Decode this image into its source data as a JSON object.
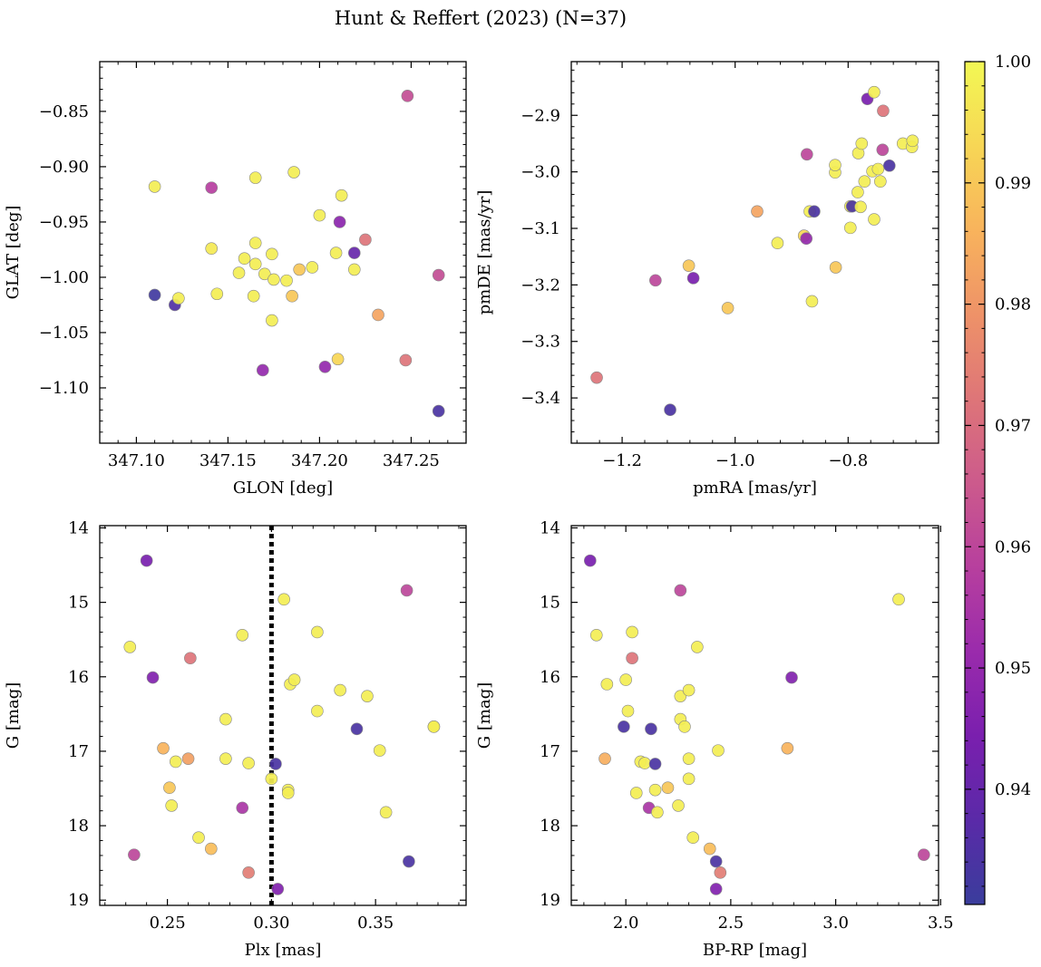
{
  "figure": {
    "title": "Hunt & Reffert (2023) (N=37)"
  },
  "colorbar": {
    "min": 0.9305,
    "max": 1.0,
    "ticks": [
      0.94,
      0.95,
      0.96,
      0.97,
      0.98,
      0.99,
      1.0
    ],
    "tick_labels": [
      "0.94",
      "0.95",
      "0.96",
      "0.97",
      "0.98",
      "0.99",
      "1.00"
    ],
    "colormap": "plasma"
  },
  "chart_data": [
    {
      "type": "scatter",
      "panel": "top-left",
      "xlabel": "GLON [deg]",
      "ylabel": "GLAT [deg]",
      "xlim": [
        347.08,
        347.28
      ],
      "ylim": [
        -1.15,
        -0.805
      ],
      "x_ticks": [
        347.1,
        347.15,
        347.2,
        347.25
      ],
      "x_tick_labels": [
        "347.10",
        "347.15",
        "347.20",
        "347.25"
      ],
      "y_ticks": [
        -0.85,
        -0.9,
        -0.95,
        -1.0,
        -1.05,
        -1.1
      ],
      "y_tick_labels": [
        "−0.85",
        "−0.90",
        "−0.95",
        "−1.00",
        "−1.05",
        "−1.10"
      ],
      "points": [
        {
          "x": 347.11,
          "y": -1.016,
          "c": 0.932
        },
        {
          "x": 347.121,
          "y": -1.025,
          "c": 0.935
        },
        {
          "x": 347.11,
          "y": -0.918,
          "c": 0.998
        },
        {
          "x": 347.123,
          "y": -1.019,
          "c": 0.998
        },
        {
          "x": 347.141,
          "y": -0.919,
          "c": 0.958
        },
        {
          "x": 347.141,
          "y": -0.974,
          "c": 0.997
        },
        {
          "x": 347.144,
          "y": -1.015,
          "c": 0.998
        },
        {
          "x": 347.156,
          "y": -0.996,
          "c": 0.998
        },
        {
          "x": 347.159,
          "y": -0.983,
          "c": 0.998
        },
        {
          "x": 347.164,
          "y": -1.017,
          "c": 0.998
        },
        {
          "x": 347.165,
          "y": -0.988,
          "c": 0.998
        },
        {
          "x": 347.165,
          "y": -0.91,
          "c": 0.998
        },
        {
          "x": 347.165,
          "y": -0.969,
          "c": 0.998
        },
        {
          "x": 347.169,
          "y": -1.084,
          "c": 0.95
        },
        {
          "x": 347.17,
          "y": -0.997,
          "c": 0.998
        },
        {
          "x": 347.174,
          "y": -1.039,
          "c": 0.998
        },
        {
          "x": 347.174,
          "y": -0.979,
          "c": 0.998
        },
        {
          "x": 347.175,
          "y": -1.002,
          "c": 0.998
        },
        {
          "x": 347.182,
          "y": -1.003,
          "c": 0.998
        },
        {
          "x": 347.185,
          "y": -1.017,
          "c": 0.99
        },
        {
          "x": 347.186,
          "y": -0.905,
          "c": 0.998
        },
        {
          "x": 347.189,
          "y": -0.993,
          "c": 0.99
        },
        {
          "x": 347.196,
          "y": -0.991,
          "c": 0.998
        },
        {
          "x": 347.2,
          "y": -0.944,
          "c": 0.998
        },
        {
          "x": 347.203,
          "y": -1.081,
          "c": 0.95
        },
        {
          "x": 347.209,
          "y": -0.978,
          "c": 0.998
        },
        {
          "x": 347.21,
          "y": -1.074,
          "c": 0.993
        },
        {
          "x": 347.211,
          "y": -0.95,
          "c": 0.948
        },
        {
          "x": 347.212,
          "y": -0.926,
          "c": 0.998
        },
        {
          "x": 347.219,
          "y": -0.978,
          "c": 0.94
        },
        {
          "x": 347.219,
          "y": -0.993,
          "c": 0.998
        },
        {
          "x": 347.225,
          "y": -0.966,
          "c": 0.972
        },
        {
          "x": 347.232,
          "y": -1.034,
          "c": 0.983
        },
        {
          "x": 347.247,
          "y": -1.075,
          "c": 0.972
        },
        {
          "x": 347.248,
          "y": -0.836,
          "c": 0.962
        },
        {
          "x": 347.265,
          "y": -0.998,
          "c": 0.962
        },
        {
          "x": 347.265,
          "y": -1.121,
          "c": 0.934
        }
      ]
    },
    {
      "type": "scatter",
      "panel": "top-right",
      "xlabel": "pmRA [mas/yr]",
      "ylabel": "pmDE [mas/yr]",
      "xlim": [
        -1.29,
        -0.64
      ],
      "ylim": [
        -3.48,
        -2.805
      ],
      "x_ticks": [
        -1.2,
        -1.0,
        -0.8
      ],
      "x_tick_labels": [
        "−1.2",
        "−1.0",
        "−0.8"
      ],
      "y_ticks": [
        -2.9,
        -3.0,
        -3.1,
        -3.2,
        -3.3,
        -3.4
      ],
      "y_tick_labels": [
        "−2.9",
        "−3.0",
        "−3.1",
        "−3.2",
        "−3.3",
        "−3.4"
      ],
      "points": [
        {
          "x": -1.245,
          "y": -3.364,
          "c": 0.972
        },
        {
          "x": -1.115,
          "y": -3.421,
          "c": 0.934
        },
        {
          "x": -1.141,
          "y": -3.192,
          "c": 0.96
        },
        {
          "x": -1.074,
          "y": -3.188,
          "c": 0.944
        },
        {
          "x": -1.082,
          "y": -3.166,
          "c": 0.99
        },
        {
          "x": -1.013,
          "y": -3.241,
          "c": 0.99
        },
        {
          "x": -0.961,
          "y": -3.07,
          "c": 0.983
        },
        {
          "x": -0.925,
          "y": -3.126,
          "c": 0.998
        },
        {
          "x": -0.878,
          "y": -3.113,
          "c": 0.993
        },
        {
          "x": -0.874,
          "y": -3.118,
          "c": 0.95
        },
        {
          "x": -0.864,
          "y": -3.229,
          "c": 0.998
        },
        {
          "x": -0.868,
          "y": -3.07,
          "c": 0.998
        },
        {
          "x": -0.86,
          "y": -3.07,
          "c": 0.934
        },
        {
          "x": -0.873,
          "y": -2.969,
          "c": 0.96
        },
        {
          "x": -0.823,
          "y": -3.001,
          "c": 0.998
        },
        {
          "x": -0.823,
          "y": -2.988,
          "c": 0.998
        },
        {
          "x": -0.822,
          "y": -3.169,
          "c": 0.99
        },
        {
          "x": -0.796,
          "y": -3.061,
          "c": 0.998
        },
        {
          "x": -0.793,
          "y": -3.061,
          "c": 0.934
        },
        {
          "x": -0.796,
          "y": -3.099,
          "c": 0.998
        },
        {
          "x": -0.783,
          "y": -3.036,
          "c": 0.998
        },
        {
          "x": -0.778,
          "y": -3.062,
          "c": 0.998
        },
        {
          "x": -0.782,
          "y": -2.967,
          "c": 0.998
        },
        {
          "x": -0.776,
          "y": -2.95,
          "c": 0.998
        },
        {
          "x": -0.771,
          "y": -3.017,
          "c": 0.998
        },
        {
          "x": -0.766,
          "y": -2.871,
          "c": 0.944
        },
        {
          "x": -0.757,
          "y": -2.999,
          "c": 0.998
        },
        {
          "x": -0.754,
          "y": -3.084,
          "c": 0.998
        },
        {
          "x": -0.754,
          "y": -2.859,
          "c": 0.998
        },
        {
          "x": -0.747,
          "y": -2.995,
          "c": 0.998
        },
        {
          "x": -0.743,
          "y": -3.017,
          "c": 0.998
        },
        {
          "x": -0.739,
          "y": -2.961,
          "c": 0.96
        },
        {
          "x": -0.738,
          "y": -2.892,
          "c": 0.972
        },
        {
          "x": -0.727,
          "y": -2.989,
          "c": 0.934
        },
        {
          "x": -0.703,
          "y": -2.95,
          "c": 0.998
        },
        {
          "x": -0.687,
          "y": -2.956,
          "c": 0.998
        },
        {
          "x": -0.686,
          "y": -2.945,
          "c": 0.998
        }
      ]
    },
    {
      "type": "scatter",
      "panel": "bottom-left",
      "xlabel": "Plx [mas]",
      "ylabel": "G [mag]",
      "xlim": [
        0.2175,
        0.3935
      ],
      "ylim": [
        19.07,
        13.97
      ],
      "y_inverted": true,
      "vline_x": 0.3,
      "x_ticks": [
        0.25,
        0.3,
        0.35
      ],
      "x_tick_labels": [
        "0.25",
        "0.30",
        "0.35"
      ],
      "y_ticks": [
        14,
        15,
        16,
        17,
        18,
        19
      ],
      "y_tick_labels": [
        "14",
        "15",
        "16",
        "17",
        "18",
        "19"
      ],
      "points": [
        {
          "x": 0.232,
          "y": 15.6,
          "c": 0.998
        },
        {
          "x": 0.234,
          "y": 18.39,
          "c": 0.96
        },
        {
          "x": 0.24,
          "y": 14.44,
          "c": 0.944
        },
        {
          "x": 0.243,
          "y": 16.01,
          "c": 0.946
        },
        {
          "x": 0.248,
          "y": 16.96,
          "c": 0.986
        },
        {
          "x": 0.251,
          "y": 17.49,
          "c": 0.99
        },
        {
          "x": 0.252,
          "y": 17.73,
          "c": 0.998
        },
        {
          "x": 0.254,
          "y": 17.14,
          "c": 0.998
        },
        {
          "x": 0.26,
          "y": 17.1,
          "c": 0.982
        },
        {
          "x": 0.261,
          "y": 15.75,
          "c": 0.972
        },
        {
          "x": 0.265,
          "y": 18.16,
          "c": 0.998
        },
        {
          "x": 0.271,
          "y": 18.31,
          "c": 0.988
        },
        {
          "x": 0.278,
          "y": 16.57,
          "c": 0.998
        },
        {
          "x": 0.278,
          "y": 17.1,
          "c": 0.998
        },
        {
          "x": 0.286,
          "y": 15.44,
          "c": 0.998
        },
        {
          "x": 0.286,
          "y": 17.76,
          "c": 0.955
        },
        {
          "x": 0.289,
          "y": 18.63,
          "c": 0.974
        },
        {
          "x": 0.289,
          "y": 17.16,
          "c": 0.998
        },
        {
          "x": 0.3,
          "y": 17.37,
          "c": 0.998
        },
        {
          "x": 0.302,
          "y": 17.17,
          "c": 0.934
        },
        {
          "x": 0.303,
          "y": 18.85,
          "c": 0.946
        },
        {
          "x": 0.306,
          "y": 14.96,
          "c": 0.998
        },
        {
          "x": 0.308,
          "y": 17.52,
          "c": 0.998
        },
        {
          "x": 0.308,
          "y": 17.56,
          "c": 0.998
        },
        {
          "x": 0.309,
          "y": 16.1,
          "c": 0.998
        },
        {
          "x": 0.311,
          "y": 16.04,
          "c": 0.998
        },
        {
          "x": 0.322,
          "y": 15.4,
          "c": 0.998
        },
        {
          "x": 0.322,
          "y": 16.46,
          "c": 0.998
        },
        {
          "x": 0.333,
          "y": 16.18,
          "c": 0.998
        },
        {
          "x": 0.341,
          "y": 16.7,
          "c": 0.934
        },
        {
          "x": 0.346,
          "y": 16.26,
          "c": 0.998
        },
        {
          "x": 0.352,
          "y": 16.99,
          "c": 0.998
        },
        {
          "x": 0.355,
          "y": 17.82,
          "c": 0.998
        },
        {
          "x": 0.365,
          "y": 14.84,
          "c": 0.96
        },
        {
          "x": 0.366,
          "y": 18.48,
          "c": 0.934
        },
        {
          "x": 0.378,
          "y": 16.67,
          "c": 0.998
        },
        {
          "x": 0.378,
          "y": 16.67,
          "c": 0.998
        }
      ]
    },
    {
      "type": "scatter",
      "panel": "bottom-right",
      "xlabel": "BP-RP [mag]",
      "ylabel": "G [mag]",
      "xlim": [
        1.74,
        3.49
      ],
      "ylim": [
        19.07,
        13.97
      ],
      "y_inverted": true,
      "x_ticks": [
        2.0,
        2.5,
        3.0,
        3.5
      ],
      "x_tick_labels": [
        "2.0",
        "2.5",
        "3.0",
        "3.5"
      ],
      "y_ticks": [
        14,
        15,
        16,
        17,
        18,
        19
      ],
      "y_tick_labels": [
        "14",
        "15",
        "16",
        "17",
        "18",
        "19"
      ],
      "points": [
        {
          "x": 1.83,
          "y": 14.44,
          "c": 0.944
        },
        {
          "x": 1.86,
          "y": 15.44,
          "c": 0.998
        },
        {
          "x": 1.9,
          "y": 17.1,
          "c": 0.985
        },
        {
          "x": 1.91,
          "y": 16.1,
          "c": 0.998
        },
        {
          "x": 1.99,
          "y": 16.67,
          "c": 0.934
        },
        {
          "x": 2.0,
          "y": 16.04,
          "c": 0.998
        },
        {
          "x": 2.01,
          "y": 16.46,
          "c": 0.998
        },
        {
          "x": 2.03,
          "y": 15.4,
          "c": 0.998
        },
        {
          "x": 2.03,
          "y": 15.75,
          "c": 0.972
        },
        {
          "x": 2.05,
          "y": 17.56,
          "c": 0.998
        },
        {
          "x": 2.07,
          "y": 17.14,
          "c": 0.998
        },
        {
          "x": 2.09,
          "y": 17.16,
          "c": 0.998
        },
        {
          "x": 2.11,
          "y": 17.76,
          "c": 0.955
        },
        {
          "x": 2.12,
          "y": 16.7,
          "c": 0.934
        },
        {
          "x": 2.14,
          "y": 17.17,
          "c": 0.934
        },
        {
          "x": 2.14,
          "y": 17.52,
          "c": 0.998
        },
        {
          "x": 2.15,
          "y": 17.82,
          "c": 0.998
        },
        {
          "x": 2.2,
          "y": 17.49,
          "c": 0.99
        },
        {
          "x": 2.25,
          "y": 17.73,
          "c": 0.998
        },
        {
          "x": 2.26,
          "y": 16.26,
          "c": 0.998
        },
        {
          "x": 2.26,
          "y": 16.57,
          "c": 0.998
        },
        {
          "x": 2.26,
          "y": 14.84,
          "c": 0.96
        },
        {
          "x": 2.28,
          "y": 16.67,
          "c": 0.998
        },
        {
          "x": 2.3,
          "y": 16.18,
          "c": 0.998
        },
        {
          "x": 2.3,
          "y": 17.1,
          "c": 0.998
        },
        {
          "x": 2.3,
          "y": 17.37,
          "c": 0.998
        },
        {
          "x": 2.32,
          "y": 18.16,
          "c": 0.998
        },
        {
          "x": 2.34,
          "y": 15.6,
          "c": 0.998
        },
        {
          "x": 2.4,
          "y": 18.31,
          "c": 0.988
        },
        {
          "x": 2.43,
          "y": 18.48,
          "c": 0.934
        },
        {
          "x": 2.43,
          "y": 18.85,
          "c": 0.946
        },
        {
          "x": 2.44,
          "y": 16.99,
          "c": 0.998
        },
        {
          "x": 2.45,
          "y": 18.63,
          "c": 0.974
        },
        {
          "x": 2.77,
          "y": 16.96,
          "c": 0.986
        },
        {
          "x": 2.79,
          "y": 16.01,
          "c": 0.946
        },
        {
          "x": 3.3,
          "y": 14.96,
          "c": 0.998
        },
        {
          "x": 3.42,
          "y": 18.39,
          "c": 0.96
        }
      ]
    }
  ]
}
